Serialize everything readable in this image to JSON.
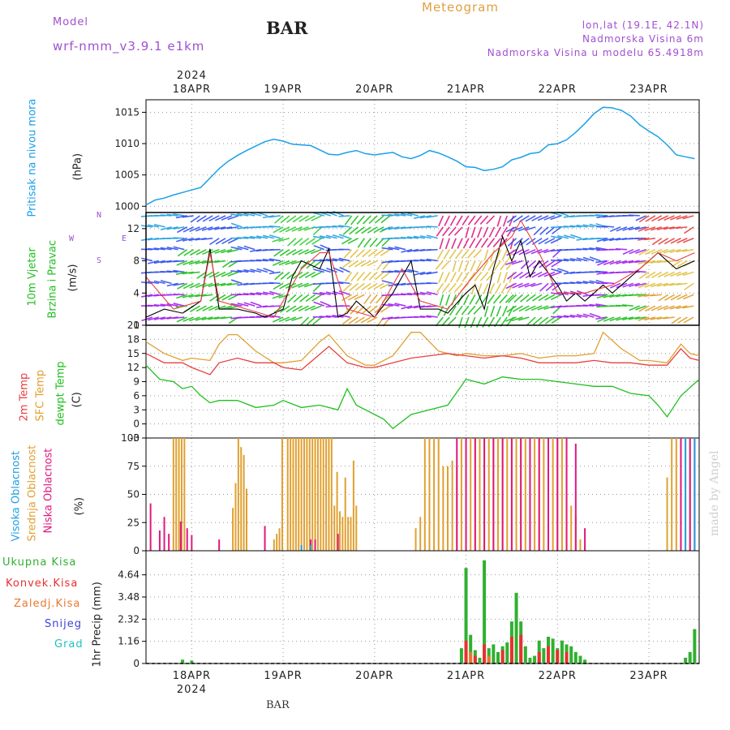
{
  "header": {
    "model_label": "Model",
    "model_name": "wrf-nmm_v3.9.1 e1km",
    "station": "BAR",
    "title": "Meteogram",
    "lonlat": "lon,lat (19.1E, 42.1N)",
    "elevation": "Nadmorska Visina 6m",
    "model_elevation": "Nadmorska Visina u modelu 65.4918m",
    "footer_station": "BAR",
    "watermark": "made by Angel"
  },
  "colors": {
    "pressure": "#1aa0e8",
    "temp2m": "#e84040",
    "sfc": "#e0a030",
    "dewpt": "#20c020",
    "high_cloud": "#20a0e0",
    "mid_cloud": "#e0a030",
    "low_cloud": "#e01880",
    "total_precip": "#30b030",
    "conv_precip": "#e83030",
    "frz_precip": "#e87830",
    "snow": "#4040e0",
    "graupel": "#20c0c0",
    "header_purple": "#a050d0",
    "title_orange": "#e0a040"
  },
  "chart_data": [
    {
      "type": "line",
      "panel": "pressure",
      "ylabel_main": "Pritisak na nivou mora",
      "yunit": "(hPa)",
      "ylim": [
        999,
        1017
      ],
      "yticks": [
        "1000",
        "1005",
        "1010",
        "1015"
      ],
      "x_dates": [
        "18APR",
        "19APR",
        "20APR",
        "21APR",
        "22APR",
        "23APR"
      ],
      "year": "2024",
      "xlim_days": [
        -0.5,
        5.55
      ],
      "grid": true,
      "series": [
        {
          "x": [
            -0.5,
            -0.4,
            -0.3,
            -0.2,
            -0.1,
            0,
            0.1,
            0.2,
            0.3,
            0.4,
            0.5,
            0.6,
            0.7,
            0.8,
            0.9,
            1.0,
            1.1,
            1.2,
            1.3,
            1.4,
            1.5,
            1.6,
            1.7,
            1.8,
            1.9,
            2.0,
            2.1,
            2.2,
            2.3,
            2.4,
            2.5,
            2.6,
            2.7,
            2.8,
            2.9,
            3.0,
            3.1,
            3.2,
            3.3,
            3.4,
            3.5,
            3.6,
            3.7,
            3.8,
            3.9,
            4.0,
            4.1,
            4.2,
            4.3,
            4.4,
            4.5,
            4.6,
            4.7,
            4.8,
            4.9,
            5.0,
            5.1,
            5.2,
            5.3,
            5.4,
            5.5
          ],
          "y": [
            1000.2,
            1001.0,
            1001.3,
            1001.8,
            1002.2,
            1002.6,
            1003.0,
            1004.5,
            1006.0,
            1007.2,
            1008.1,
            1008.9,
            1009.6,
            1010.3,
            1010.7,
            1010.4,
            1009.9,
            1009.8,
            1009.7,
            1009.0,
            1008.3,
            1008.2,
            1008.6,
            1008.9,
            1008.4,
            1008.2,
            1008.4,
            1008.6,
            1007.9,
            1007.6,
            1008.1,
            1008.9,
            1008.5,
            1007.9,
            1007.2,
            1006.3,
            1006.2,
            1005.7,
            1005.9,
            1006.3,
            1007.4,
            1007.8,
            1008.4,
            1008.6,
            1009.8,
            1010.0,
            1010.6,
            1011.8,
            1013.2,
            1014.8,
            1015.8,
            1015.7,
            1015.3,
            1014.4,
            1013.0,
            1012.0,
            1011.1,
            1009.8,
            1008.2,
            1007.9,
            1007.6
          ]
        }
      ]
    },
    {
      "type": "line",
      "panel": "wind",
      "ylabel_main": "10m Vjetar",
      "ylabel_sub": "Brzina i Pravac",
      "yunit": "(m/s)",
      "compass": {
        "n": "N",
        "s": "S",
        "w": "W",
        "e": "E"
      },
      "ylim": [
        0,
        14
      ],
      "yticks": [
        "0",
        "4",
        "8",
        "12"
      ],
      "series": [
        {
          "name": "speed",
          "x": [
            -0.5,
            -0.3,
            -0.1,
            0.1,
            0.2,
            0.3,
            0.5,
            0.7,
            0.8,
            0.9,
            1.0,
            1.1,
            1.2,
            1.4,
            1.5,
            1.6,
            1.7,
            1.8,
            2.0,
            2.2,
            2.3,
            2.4,
            2.5,
            2.7,
            2.8,
            3.0,
            3.1,
            3.2,
            3.3,
            3.4,
            3.5,
            3.6,
            3.7,
            3.8,
            4.0,
            4.1,
            4.2,
            4.3,
            4.5,
            4.6,
            4.7,
            4.9,
            5.0,
            5.1,
            5.2,
            5.3,
            5.4,
            5.5
          ],
          "y": [
            1,
            2,
            1.5,
            3,
            9.5,
            2,
            2,
            1.5,
            1,
            1.5,
            2,
            6,
            8,
            7,
            9.5,
            1,
            1.5,
            3,
            1,
            4,
            6,
            8,
            2,
            2,
            1.5,
            4,
            5,
            2,
            7,
            11,
            8,
            10.5,
            6,
            8,
            5,
            3,
            4,
            3,
            5,
            4,
            5,
            7,
            8,
            9,
            8,
            7,
            7.5,
            8
          ]
        },
        {
          "name": "gust",
          "x": [
            -0.5,
            -0.2,
            0.1,
            0.2,
            0.3,
            0.6,
            0.9,
            1.2,
            1.4,
            1.5,
            1.7,
            2.0,
            2.3,
            2.5,
            2.8,
            3.0,
            3.3,
            3.5,
            3.6,
            3.8,
            4.0,
            4.3,
            4.6,
            4.9,
            5.1,
            5.3,
            5.5
          ],
          "y": [
            6,
            2,
            3,
            9,
            3,
            2,
            1,
            7,
            9,
            9,
            2,
            1,
            7,
            3,
            2,
            5,
            9,
            11,
            13,
            9,
            4,
            4,
            5,
            7,
            9,
            8,
            9
          ]
        }
      ]
    },
    {
      "type": "line",
      "panel": "temperature",
      "ylabels": [
        "2m Temp",
        "SFC Temp",
        "dewpt Temp"
      ],
      "yunit": "(C)",
      "ylim": [
        -3,
        21
      ],
      "yticks": [
        "-3",
        "0",
        "3",
        "6",
        "9",
        "12",
        "15",
        "18",
        "21"
      ],
      "series": [
        {
          "name": "2m Temp",
          "x": [
            -0.5,
            -0.3,
            -0.1,
            0,
            0.2,
            0.3,
            0.5,
            0.7,
            0.9,
            1.0,
            1.2,
            1.5,
            1.7,
            1.9,
            2.0,
            2.2,
            2.4,
            2.6,
            2.8,
            3.0,
            3.2,
            3.4,
            3.6,
            3.8,
            4.0,
            4.2,
            4.4,
            4.6,
            4.8,
            5.0,
            5.2,
            5.35,
            5.45,
            5.55
          ],
          "y": [
            15,
            13,
            13,
            12,
            10.5,
            13,
            14,
            13,
            13,
            12,
            11.5,
            16.5,
            13,
            12,
            12,
            13,
            14,
            14.5,
            15,
            14.5,
            14,
            14.5,
            14,
            13,
            13,
            13,
            13.5,
            13,
            13,
            12.5,
            12.5,
            16,
            14,
            13.5
          ]
        },
        {
          "name": "SFC Temp",
          "x": [
            -0.5,
            -0.3,
            -0.1,
            0,
            0.2,
            0.3,
            0.4,
            0.5,
            0.7,
            0.9,
            1.0,
            1.2,
            1.4,
            1.5,
            1.7,
            1.9,
            2.0,
            2.2,
            2.4,
            2.5,
            2.7,
            2.9,
            3.0,
            3.2,
            3.4,
            3.6,
            3.8,
            4.0,
            4.2,
            4.4,
            4.5,
            4.7,
            4.9,
            5.0,
            5.2,
            5.35,
            5.45,
            5.55
          ],
          "y": [
            17.5,
            15,
            13.5,
            14,
            13.5,
            17,
            19,
            19,
            15.5,
            13,
            13,
            13.5,
            17.5,
            19,
            14.5,
            12.5,
            12.5,
            14.5,
            19.5,
            19.5,
            15.5,
            14.5,
            15,
            14.5,
            14.5,
            15,
            14,
            14.5,
            14.5,
            15,
            19.5,
            16,
            13.5,
            13.5,
            13,
            17,
            15,
            14.5
          ]
        },
        {
          "name": "dewpt Temp",
          "x": [
            -0.5,
            -0.35,
            -0.2,
            -0.1,
            0,
            0.1,
            0.2,
            0.3,
            0.5,
            0.7,
            0.9,
            1.0,
            1.2,
            1.4,
            1.6,
            1.7,
            1.8,
            2.0,
            2.1,
            2.2,
            2.4,
            2.6,
            2.8,
            3.0,
            3.2,
            3.4,
            3.6,
            3.8,
            4.0,
            4.2,
            4.4,
            4.6,
            4.8,
            5.0,
            5.1,
            5.2,
            5.35,
            5.55
          ],
          "y": [
            12.5,
            9.5,
            9,
            7.5,
            8,
            6,
            4.5,
            5,
            5,
            3.5,
            4,
            5,
            3.5,
            4,
            3,
            7.5,
            4,
            2,
            1,
            -1,
            2,
            3,
            4,
            9.5,
            8.5,
            10,
            9.5,
            9.5,
            9,
            8.5,
            8,
            8,
            6.5,
            6,
            4,
            1.5,
            6,
            9.5
          ]
        }
      ]
    },
    {
      "type": "bar",
      "panel": "cloud",
      "ylabels": [
        "Visoka Oblacnost",
        "Srednja Oblacnost",
        "Niska Oblacnost"
      ],
      "yunit": "(%)",
      "ylim": [
        0,
        100
      ],
      "yticks": [
        "0",
        "25",
        "50",
        "75",
        "100"
      ],
      "series": [
        {
          "name": "Srednja Oblacnost",
          "x": [
            -0.2,
            -0.17,
            -0.14,
            -0.11,
            -0.08,
            0.45,
            0.48,
            0.51,
            0.54,
            0.57,
            0.6,
            0.9,
            0.93,
            0.96,
            0.99,
            1.05,
            1.08,
            1.11,
            1.14,
            1.17,
            1.2,
            1.23,
            1.26,
            1.29,
            1.32,
            1.35,
            1.38,
            1.41,
            1.44,
            1.47,
            1.5,
            1.53,
            1.56,
            1.59,
            1.62,
            1.65,
            1.68,
            1.71,
            1.74,
            1.77,
            1.8,
            2.45,
            2.5,
            2.55,
            2.6,
            2.65,
            2.7,
            2.75,
            2.8,
            2.85,
            2.9,
            2.95,
            3.0,
            3.05,
            3.1,
            3.15,
            3.2,
            3.25,
            3.3,
            3.35,
            3.4,
            3.45,
            3.5,
            3.55,
            3.6,
            3.65,
            3.7,
            3.75,
            3.8,
            3.85,
            3.9,
            3.95,
            4.0,
            4.05,
            4.1,
            4.15,
            4.2,
            4.25,
            4.3,
            5.2,
            5.25,
            5.3,
            5.35,
            5.4,
            5.45
          ],
          "y": [
            100,
            100,
            100,
            100,
            100,
            38,
            60,
            100,
            92,
            85,
            55,
            10,
            15,
            20,
            100,
            100,
            100,
            100,
            100,
            100,
            100,
            100,
            100,
            100,
            100,
            100,
            100,
            100,
            100,
            100,
            100,
            100,
            40,
            70,
            35,
            30,
            65,
            30,
            30,
            80,
            40,
            20,
            30,
            100,
            100,
            100,
            100,
            75,
            75,
            80,
            75,
            100,
            100,
            100,
            100,
            100,
            100,
            100,
            100,
            100,
            100,
            100,
            100,
            100,
            100,
            100,
            100,
            100,
            100,
            100,
            100,
            100,
            100,
            100,
            85,
            40,
            30,
            10,
            5,
            65,
            100,
            100,
            100,
            100,
            100
          ]
        },
        {
          "name": "Niska Oblacnost",
          "x": [
            -0.45,
            -0.35,
            -0.3,
            -0.25,
            -0.12,
            -0.05,
            0.0,
            0.3,
            0.8,
            1.3,
            1.35,
            1.6,
            2.9,
            3.0,
            3.1,
            3.2,
            3.3,
            3.4,
            3.5,
            3.6,
            3.7,
            3.8,
            3.9,
            4.0,
            4.1,
            4.2,
            4.3,
            5.35,
            5.45,
            5.5
          ],
          "y": [
            42,
            18,
            30,
            15,
            26,
            20,
            14,
            10,
            22,
            10,
            10,
            15,
            100,
            100,
            100,
            100,
            100,
            100,
            100,
            100,
            100,
            100,
            100,
            100,
            100,
            95,
            20,
            100,
            100,
            100
          ]
        },
        {
          "name": "Visoka Oblacnost",
          "x": [
            1.2,
            1.3,
            5.4,
            5.5
          ],
          "y": [
            5,
            5,
            100,
            100
          ]
        }
      ]
    },
    {
      "type": "bar",
      "panel": "precip",
      "ylabels": [
        "Ukupna Kisa",
        "Konvek.Kisa",
        "Zaledj.Kisa",
        "Snijeg",
        "Grad"
      ],
      "yunit": "1hr Precip (mm)",
      "ylim": [
        0,
        5.9
      ],
      "yticks": [
        "0",
        "1.16",
        "2.32",
        "3.48",
        "4.64"
      ],
      "series": [
        {
          "name": "Ukupna Kisa",
          "x": [
            -0.1,
            0.0,
            2.95,
            3.0,
            3.05,
            3.1,
            3.15,
            3.2,
            3.25,
            3.3,
            3.35,
            3.4,
            3.45,
            3.5,
            3.55,
            3.6,
            3.65,
            3.7,
            3.75,
            3.8,
            3.85,
            3.9,
            3.95,
            4.0,
            4.05,
            4.1,
            4.15,
            4.2,
            4.25,
            4.3,
            5.4,
            5.45,
            5.5
          ],
          "y": [
            0.2,
            0.15,
            0.8,
            5.0,
            1.5,
            0.7,
            0.3,
            5.4,
            0.8,
            1.0,
            0.6,
            0.9,
            1.1,
            2.2,
            3.7,
            2.2,
            0.9,
            0.3,
            0.4,
            1.2,
            0.8,
            1.4,
            1.3,
            0.8,
            1.2,
            1.0,
            0.9,
            0.6,
            0.4,
            0.2,
            0.3,
            0.6,
            1.8
          ]
        },
        {
          "name": "Konvek.Kisa",
          "x": [
            3.0,
            3.1,
            3.2,
            3.4,
            3.5,
            3.6,
            3.8,
            3.9,
            4.0,
            4.1
          ],
          "y": [
            1.2,
            0.4,
            1.0,
            0.7,
            1.4,
            1.5,
            0.6,
            0.9,
            0.7,
            0.6
          ]
        },
        {
          "name": "Zaledj.Kisa",
          "x": [
            3.05,
            3.25
          ],
          "y": [
            0.6,
            0.4
          ]
        }
      ]
    }
  ]
}
